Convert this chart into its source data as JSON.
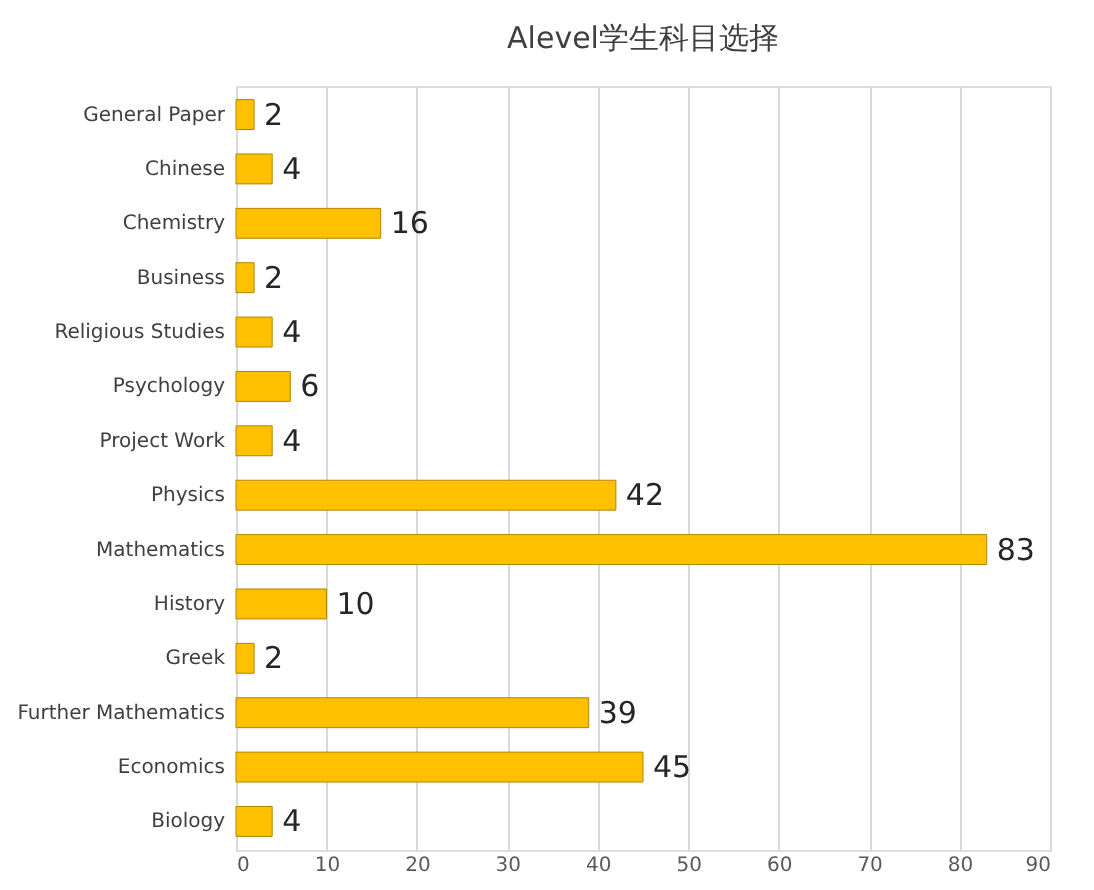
{
  "chart_data": {
    "type": "bar",
    "orientation": "horizontal",
    "title": "Alevel学生科目选择",
    "categories": [
      "General Paper",
      "Chinese",
      "Chemistry",
      "Business",
      "Religious Studies",
      "Psychology",
      "Project Work",
      "Physics",
      "Mathematics",
      "History",
      "Greek",
      "Further Mathematics",
      "Economics",
      "Biology"
    ],
    "values": [
      2,
      4,
      16,
      2,
      4,
      6,
      4,
      42,
      83,
      10,
      2,
      39,
      45,
      4
    ],
    "color": "#ffc000",
    "xlim": [
      0,
      90
    ],
    "xticks": [
      0,
      10,
      20,
      30,
      40,
      50,
      60,
      70,
      80,
      90
    ],
    "grid": "x",
    "data_labels": true
  }
}
